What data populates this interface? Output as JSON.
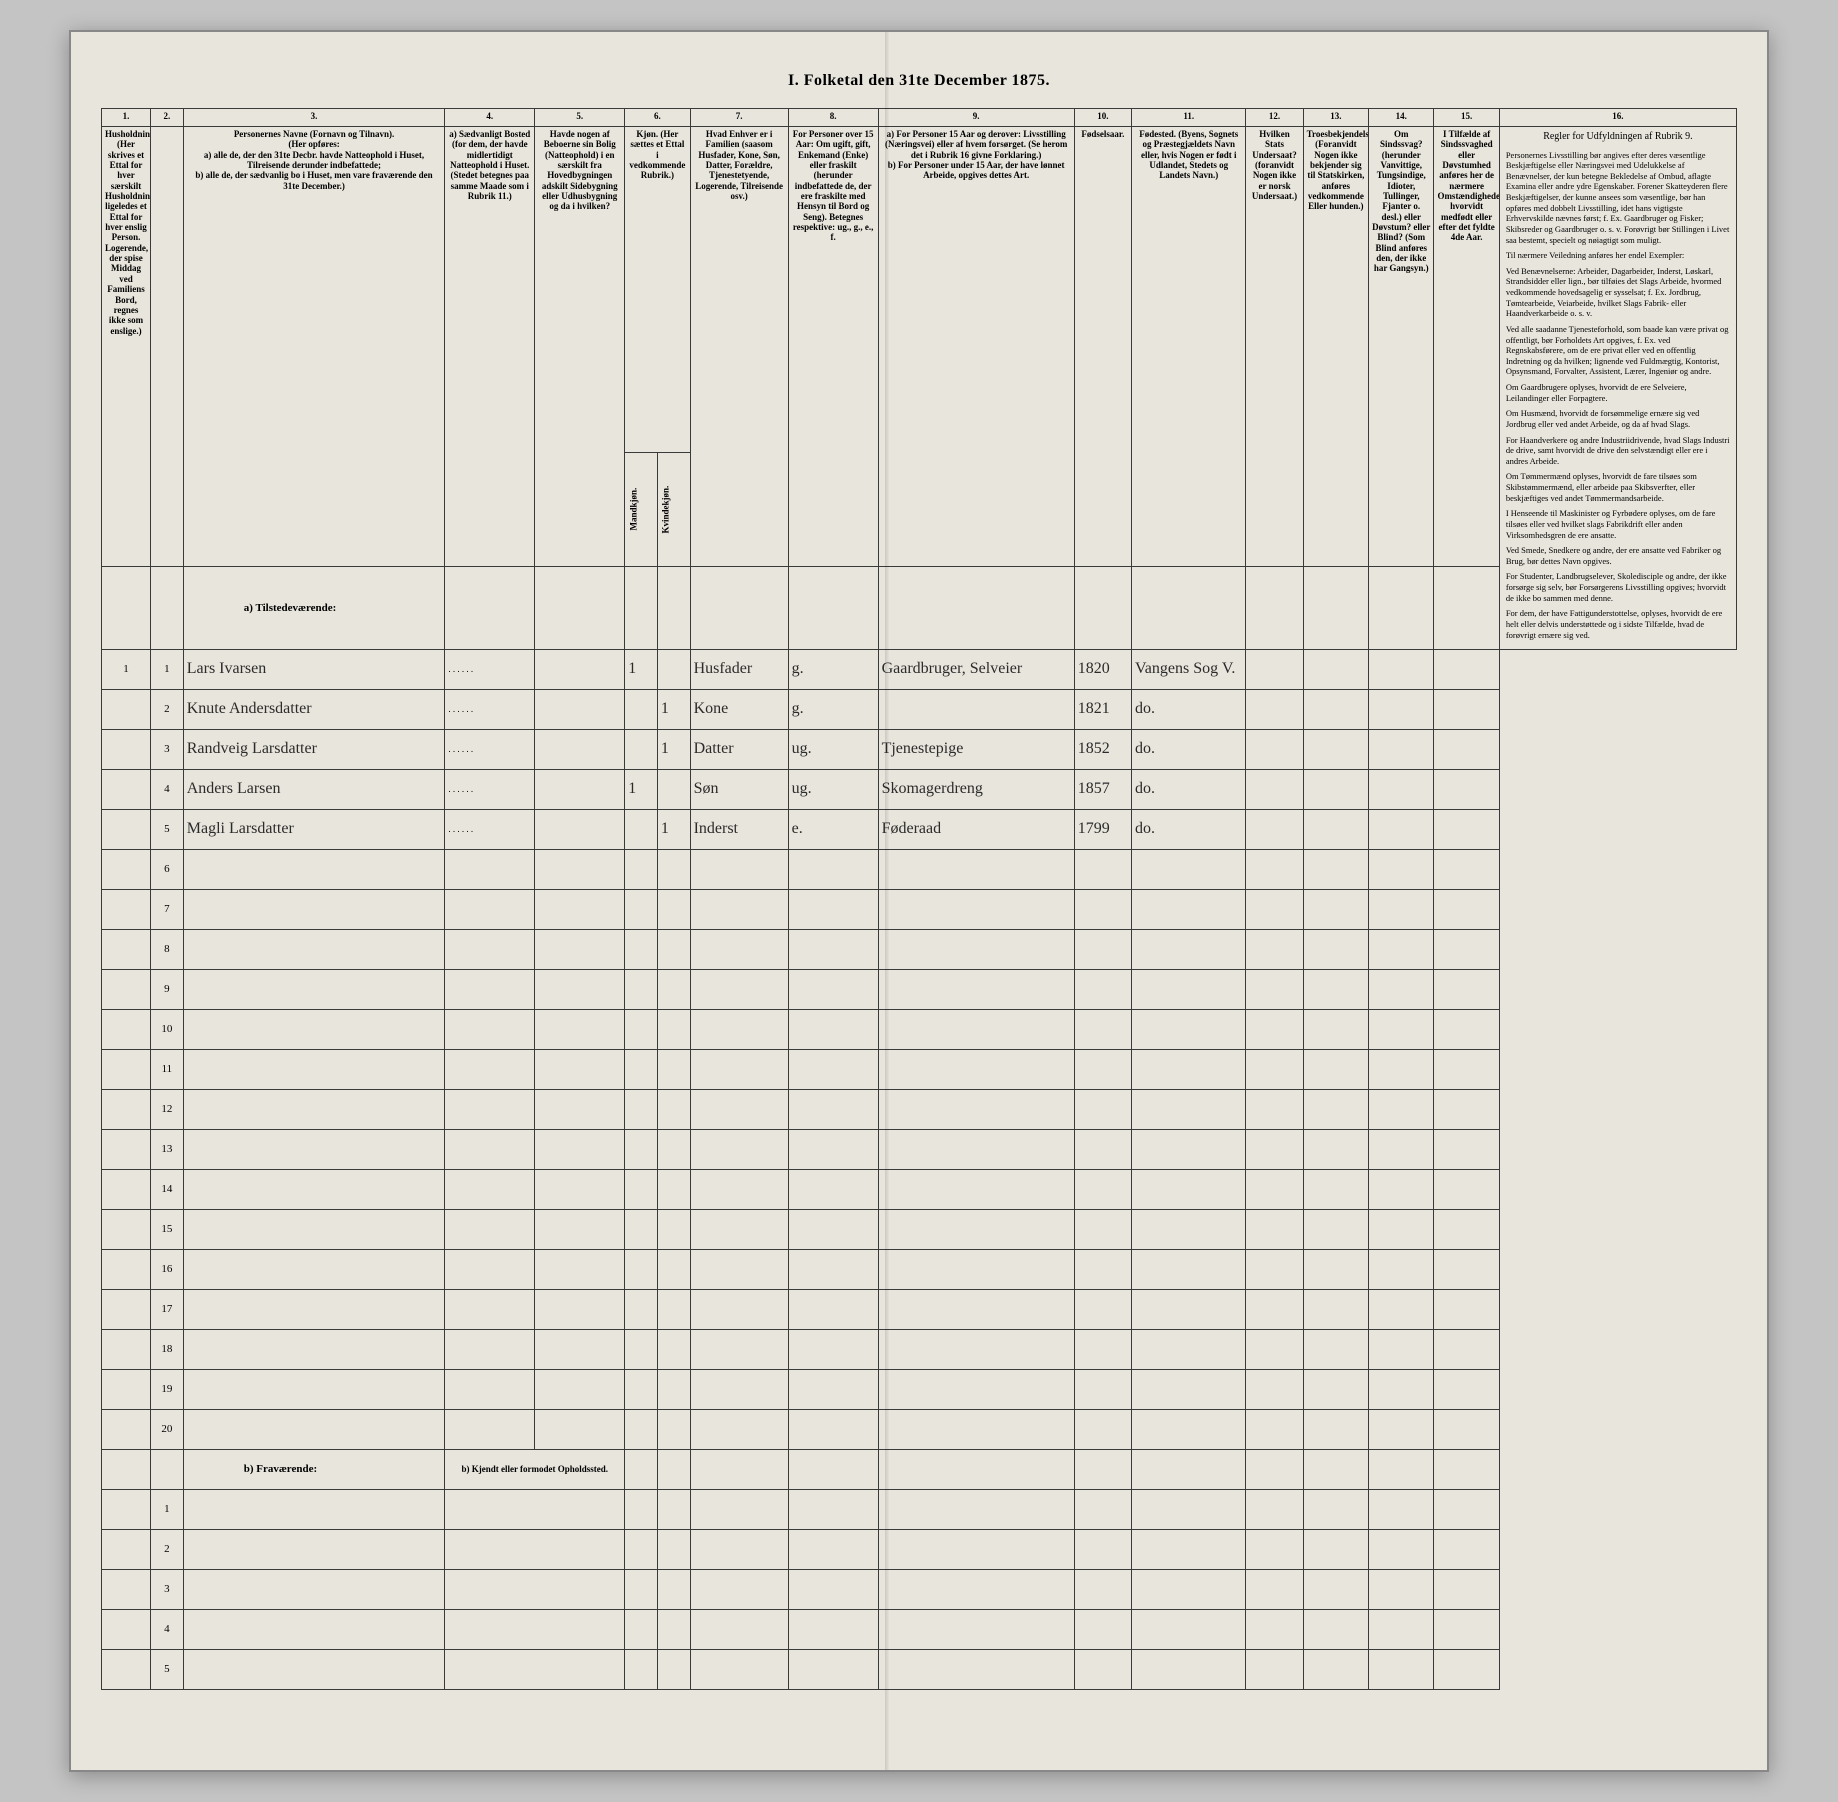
{
  "title": "I.  Folketal den 31te December 1875.",
  "colnums": [
    "1.",
    "2.",
    "3.",
    "4.",
    "5.",
    "6.",
    "7.",
    "8.",
    "9.",
    "10.",
    "11.",
    "12.",
    "13.",
    "14.",
    "15.",
    "16."
  ],
  "headers": {
    "c1": "Husholdninger. (Her skrives et Ettal for hver særskilt Husholdning; ligeledes et Ettal for hver enslig Person. Logerende, der spise Middag ved Familiens Bord, regnes ikke som enslige.)",
    "c3": "Personernes Navne (Fornavn og Tilnavn).\n(Her opføres:\na) alle de, der den 31te Decbr. havde Natteophold i Huset, Tilreisende derunder indbefattede;\nb) alle de, der sædvanlig bo i Huset, men vare fraværende den 31te December.)",
    "c4": "a) Sædvanligt Bosted (for dem, der havde midlertidigt Natteophold i Huset. (Stedet betegnes paa samme Maade som i Rubrik 11.)",
    "c5": "Havde nogen af Beboerne sin Bolig (Natteophold) i en særskilt fra Hovedbygningen adskilt Sidebygning eller Udhusbygning og da i hvilken?",
    "c6": "Kjøn. (Her sættes et Ettal i vedkommende Rubrik.)",
    "c6a": "Mandkjøn.",
    "c6b": "Kvindekjøn.",
    "c7": "Hvad Enhver er i Familien (saasom Husfader, Kone, Søn, Datter, Forældre, Tjenestetyende, Logerende, Tilreisende osv.)",
    "c8": "For Personer over 15 Aar: Om ugift, gift, Enkemand (Enke) eller fraskilt (herunder indbefattede de, der ere fraskilte med Hensyn til Bord og Seng). Betegnes respektive: ug., g., e., f.",
    "c9": "a) For Personer 15 Aar og derover: Livsstilling (Næringsvei) eller af hvem forsørget. (Se herom det i Rubrik 16 givne Forklaring.)\nb) For Personer under 15 Aar, der have lønnet Arbeide, opgives dettes Art.",
    "c10": "Fødselsaar.",
    "c11": "Fødested. (Byens, Sognets og Præstegjældets Navn eller, hvis Nogen er født i Udlandet, Stedets og Landets Navn.)",
    "c12": "Hvilken Stats Undersaat? (foranvidt Nogen ikke er norsk Undersaat.)",
    "c13": "Troesbekjendelse. (Foranvidt Nogen ikke bekjender sig til Statskirken, anføres vedkommende Eller hunden.)",
    "c14": "Om Sindssvag? (herunder Vanvittige, Tungsindige, Idioter, Tullinger, Fjanter o. desl.) eller Døvstum? eller Blind? (Som Blind anføres den, der ikke har Gangsyn.)",
    "c15": "I Tilfælde af Sindssvaghed eller Døvstumhed anføres her de nærmere Omstændigheder, hvorvidt medfødt eller efter det fyldte 4de Aar.",
    "c16_title": "Regler for Udfyldningen af Rubrik 9."
  },
  "sections": {
    "a": "a) Tilstedeværende:",
    "b": "b) Fraværende:",
    "b_sub": "b) Kjendt eller formodet Opholdssted."
  },
  "rows_a": [
    {
      "h": "1",
      "p": "1",
      "name": "Lars Ivarsen",
      "c5": "",
      "m": "1",
      "k": "",
      "fam": "Husfader",
      "civ": "g.",
      "occ": "Gaardbruger, Selveier",
      "yr": "1820",
      "place": "Vangens Sog V.",
      "state": "",
      "rel": "",
      "dis": "",
      "dis2": ""
    },
    {
      "h": "",
      "p": "2",
      "name": "Knute Andersdatter",
      "c5": "",
      "m": "",
      "k": "1",
      "fam": "Kone",
      "civ": "g.",
      "occ": "",
      "yr": "1821",
      "place": "do.",
      "state": "",
      "rel": "",
      "dis": "",
      "dis2": ""
    },
    {
      "h": "",
      "p": "3",
      "name": "Randveig Larsdatter",
      "c5": "",
      "m": "",
      "k": "1",
      "fam": "Datter",
      "civ": "ug.",
      "occ": "Tjenestepige",
      "yr": "1852",
      "place": "do.",
      "state": "",
      "rel": "",
      "dis": "",
      "dis2": ""
    },
    {
      "h": "",
      "p": "4",
      "name": "Anders Larsen",
      "c5": "",
      "m": "1",
      "k": "",
      "fam": "Søn",
      "civ": "ug.",
      "occ": "Skomagerdreng",
      "yr": "1857",
      "place": "do.",
      "state": "",
      "rel": "",
      "dis": "",
      "dis2": ""
    },
    {
      "h": "",
      "p": "5",
      "name": "Magli Larsdatter",
      "c5": "",
      "m": "",
      "k": "1",
      "fam": "Inderst",
      "civ": "e.",
      "occ": "Føderaad",
      "yr": "1799",
      "place": "do.",
      "state": "",
      "rel": "",
      "dis": "",
      "dis2": ""
    }
  ],
  "blank_a_start": 6,
  "blank_a_end": 20,
  "rows_b_count": 5,
  "instructions_paras": [
    "Personernes Livsstilling bør angives efter deres væsentlige Beskjæftigelse eller Næringsvei med Udelukkelse af Benævnelser, der kun betegne Bekledelse af Ombud, aflagte Examina eller andre ydre Egenskaber. Forener Skatteyderen flere Beskjæftigelser, der kunne ansees som væsentlige, bør han opføres med dobbelt Livsstilling, idet hans vigtigste Erhvervskilde nævnes først; f. Ex. Gaardbruger og Fisker; Skibsreder og Gaardbruger o. s. v. Forøvrigt bør Stillingen i Livet saa bestemt, specielt og nøiagtigt som muligt.",
    "Til nærmere Veiledning anføres her endel Exempler:",
    "Ved Benævnelserne: Arbeider, Dagarbeider, Inderst, Løskarl, Strandsidder eller lign., bør tilføies det Slags Arbeide, hvormed vedkommende hovedsagelig er sysselsat; f. Ex. Jordbrug, Tømtearbeide, Veiarbeide, hvilket Slags Fabrik- eller Haandverkarbeide o. s. v.",
    "Ved alle saadanne Tjenesteforhold, som baade kan være privat og offentligt, bør Forholdets Art opgives, f. Ex. ved Regnskabsførere, om de ere privat eller ved en offentlig Indretning og da hvilken; lignende ved Fuldmægtig, Kontorist, Opsynsmand, Forvalter, Assistent, Lærer, Ingeniør og andre.",
    "Om Gaardbrugere oplyses, hvorvidt de ere Selveiere, Leilandinger eller Forpagtere.",
    "Om Husmænd, hvorvidt de forsømmelige ernære sig ved Jordbrug eller ved andet Arbeide, og da af hvad Slags.",
    "For Haandverkere og andre Industriidrivende, hvad Slags Industri de drive, samt hvorvidt de drive den selvstændigt eller ere i andres Arbeide.",
    "Om Tømmermænd oplyses, hvorvidt de fare tilsøes som Skibstømmermænd, eller arbeide paa Skibsverfter, eller beskjæftiges ved andet Tømmermandsarbeide.",
    "I Henseende til Maskinister og Fyrbødere oplyses, om de fare tilsøes eller ved hvilket slags Fabrikdrift eller anden Virksomhedsgren de ere ansatte.",
    "Ved Smede, Snedkere og andre, der ere ansatte ved Fabriker og Brug, bør dettes Navn opgives.",
    "For Studenter, Landbrugselever, Skoledisciple og andre, der ikke forsørge sig selv, bør Forsørgerens Livsstilling opgives; hvorvidt de ikke bo sammen med denne.",
    "For dem, der have Fattigunderstottelse, oplyses, hvorvidt de ere helt eller delvis understøttede og i sidste Tilfælde, hvad de forøvrigt ernære sig ved."
  ]
}
